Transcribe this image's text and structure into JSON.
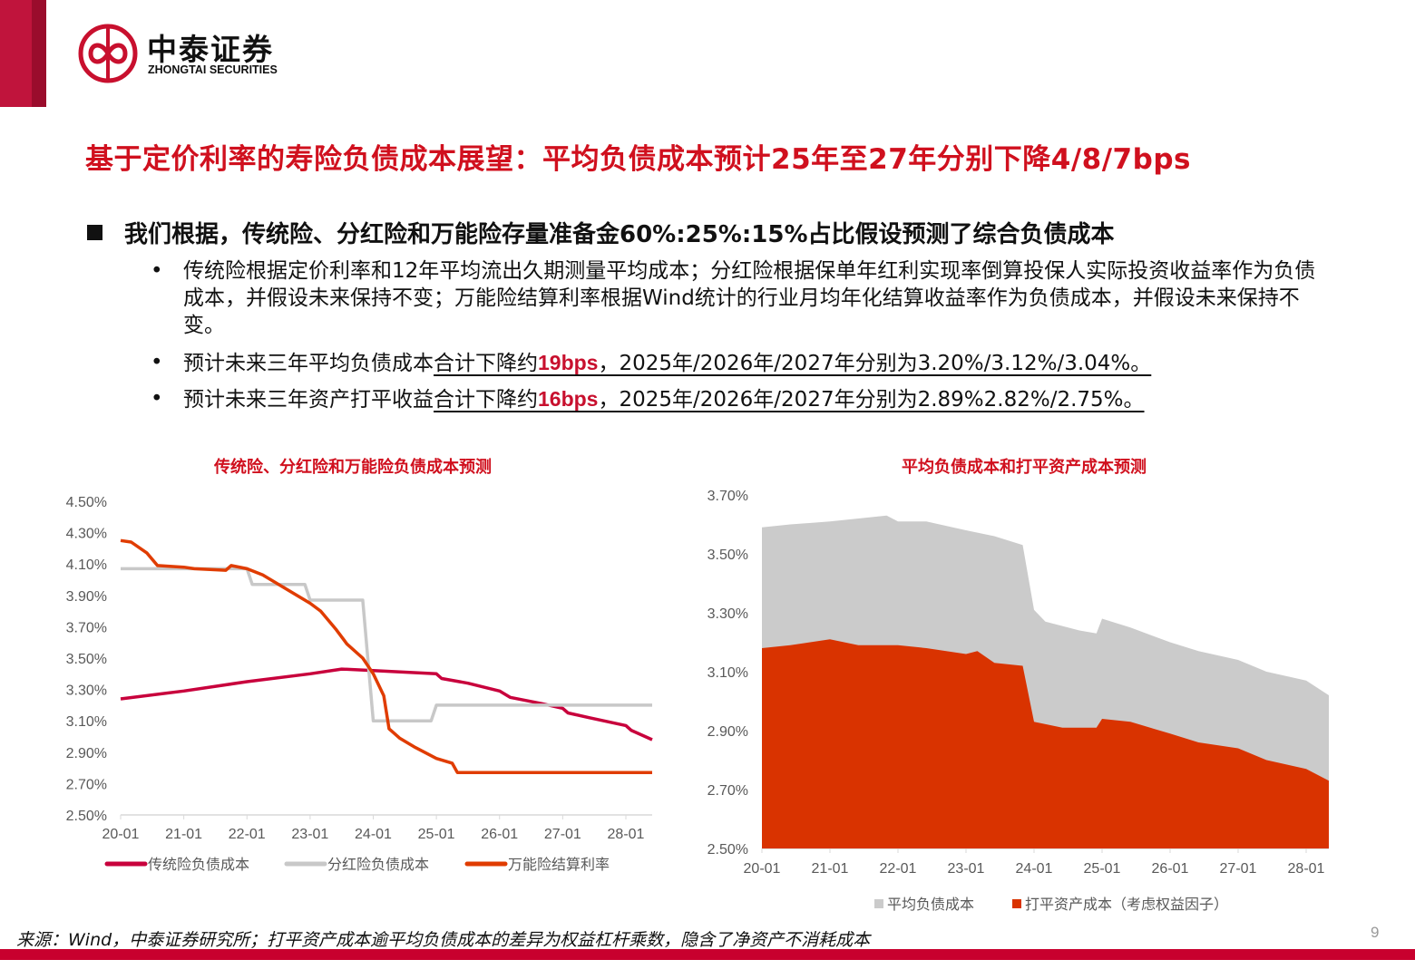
{
  "brand": {
    "name_cn": "中泰证券",
    "name_en": "ZHONGTAI SECURITIES",
    "color": "#C8102E"
  },
  "title": "基于定价利率的寿险负债成本展望：平均负债成本预计25年至27年分别下降4/8/7bps",
  "heading": "我们根据，传统险、分红险和万能险存量准备金60%:25%:15%占比假设预测了综合负债成本",
  "bullets": [
    {
      "text": "传统险根据定价利率和12年平均流出久期测量平均成本；分红险根据保单年红利实现率倒算投保人实际投资收益率作为负债成本，并假设未来保持不变；万能险结算利率根据Wind统计的行业月均年化结算收益率作为负债成本，并假设未来保持不变。"
    },
    {
      "pre": "预计未来三年平均负债成本",
      "ul": "合计下降约",
      "hl": "19bps",
      "post": "，2025年/2026年/2027年分别为3.20%/3.12%/3.04%。"
    },
    {
      "pre": "预计未来三年资产打平收益",
      "ul": "合计下降约",
      "hl": "16bps",
      "post": "，2025年/2026年/2027年分别为2.89%2.82%/2.75%。"
    }
  ],
  "bullet_symbol": "•",
  "chart_data": [
    {
      "type": "line",
      "title": "传统险、分红险和万能险负债成本预测",
      "ylim": [
        2.5,
        4.5
      ],
      "yticks": [
        "4.50%",
        "4.30%",
        "4.10%",
        "3.90%",
        "3.70%",
        "3.50%",
        "3.30%",
        "3.10%",
        "2.90%",
        "2.70%",
        "2.50%"
      ],
      "xticks": [
        "20-01",
        "21-01",
        "22-01",
        "23-01",
        "24-01",
        "25-01",
        "26-01",
        "27-01",
        "28-01"
      ],
      "xrange": [
        "20-01",
        "28-06"
      ],
      "legend_position": "bottom",
      "grid": false,
      "series": [
        {
          "name": "传统险负债成本",
          "color": "#C8003C",
          "points": [
            [
              "20-01",
              3.24
            ],
            [
              "21-01",
              3.29
            ],
            [
              "22-01",
              3.35
            ],
            [
              "23-01",
              3.4
            ],
            [
              "23-07",
              3.43
            ],
            [
              "24-01",
              3.42
            ],
            [
              "25-01",
              3.4
            ],
            [
              "25-02",
              3.37
            ],
            [
              "25-07",
              3.34
            ],
            [
              "26-01",
              3.29
            ],
            [
              "26-03",
              3.25
            ],
            [
              "26-09",
              3.21
            ],
            [
              "27-01",
              3.18
            ],
            [
              "27-02",
              3.15
            ],
            [
              "27-06",
              3.12
            ],
            [
              "28-01",
              3.07
            ],
            [
              "28-02",
              3.04
            ],
            [
              "28-06",
              2.98
            ]
          ]
        },
        {
          "name": "分红险负债成本",
          "color": "#C8C8C8",
          "points": [
            [
              "20-01",
              4.07
            ],
            [
              "22-01",
              4.07
            ],
            [
              "22-02",
              3.97
            ],
            [
              "22-12",
              3.97
            ],
            [
              "23-01",
              3.87
            ],
            [
              "23-11",
              3.87
            ],
            [
              "24-01",
              3.1
            ],
            [
              "24-12",
              3.1
            ],
            [
              "25-01",
              3.2
            ],
            [
              "28-06",
              3.2
            ]
          ]
        },
        {
          "name": "万能险结算利率",
          "color": "#E03C00",
          "points": [
            [
              "20-01",
              4.25
            ],
            [
              "20-03",
              4.24
            ],
            [
              "20-06",
              4.17
            ],
            [
              "20-08",
              4.09
            ],
            [
              "21-01",
              4.08
            ],
            [
              "21-03",
              4.07
            ],
            [
              "21-09",
              4.06
            ],
            [
              "21-10",
              4.09
            ],
            [
              "22-01",
              4.07
            ],
            [
              "22-04",
              4.03
            ],
            [
              "22-09",
              3.93
            ],
            [
              "23-01",
              3.85
            ],
            [
              "23-03",
              3.8
            ],
            [
              "23-06",
              3.68
            ],
            [
              "23-08",
              3.59
            ],
            [
              "23-11",
              3.5
            ],
            [
              "24-01",
              3.4
            ],
            [
              "24-03",
              3.26
            ],
            [
              "24-04",
              3.05
            ],
            [
              "24-06",
              2.99
            ],
            [
              "24-09",
              2.93
            ],
            [
              "25-01",
              2.86
            ],
            [
              "25-04",
              2.83
            ],
            [
              "25-05",
              2.77
            ],
            [
              "28-06",
              2.77
            ]
          ]
        }
      ]
    },
    {
      "type": "area",
      "title": "平均负债成本和打平资产成本预测",
      "ylim": [
        2.5,
        3.7
      ],
      "yticks": [
        "3.70%",
        "3.50%",
        "3.30%",
        "3.10%",
        "2.90%",
        "2.70%",
        "2.50%"
      ],
      "xticks": [
        "20-01",
        "21-01",
        "22-01",
        "23-01",
        "24-01",
        "25-01",
        "26-01",
        "27-01",
        "28-01"
      ],
      "xrange": [
        "20-01",
        "28-05"
      ],
      "legend_position": "bottom",
      "grid": false,
      "series": [
        {
          "name": "平均负债成本",
          "color": "#CBCBCB",
          "points": [
            [
              "20-01",
              3.59
            ],
            [
              "20-06",
              3.6
            ],
            [
              "21-01",
              3.61
            ],
            [
              "21-06",
              3.62
            ],
            [
              "21-11",
              3.63
            ],
            [
              "22-01",
              3.61
            ],
            [
              "22-06",
              3.61
            ],
            [
              "23-01",
              3.58
            ],
            [
              "23-06",
              3.56
            ],
            [
              "23-11",
              3.53
            ],
            [
              "24-01",
              3.31
            ],
            [
              "24-03",
              3.27
            ],
            [
              "24-09",
              3.24
            ],
            [
              "24-12",
              3.23
            ],
            [
              "25-01",
              3.28
            ],
            [
              "25-06",
              3.25
            ],
            [
              "26-01",
              3.2
            ],
            [
              "26-06",
              3.17
            ],
            [
              "27-01",
              3.14
            ],
            [
              "27-06",
              3.1
            ],
            [
              "28-01",
              3.07
            ],
            [
              "28-05",
              3.02
            ]
          ]
        },
        {
          "name": "打平资产成本（考虑权益因子）",
          "color": "#D93300",
          "points": [
            [
              "20-01",
              3.18
            ],
            [
              "20-06",
              3.19
            ],
            [
              "21-01",
              3.21
            ],
            [
              "21-06",
              3.19
            ],
            [
              "22-01",
              3.19
            ],
            [
              "22-06",
              3.18
            ],
            [
              "23-01",
              3.16
            ],
            [
              "23-03",
              3.17
            ],
            [
              "23-06",
              3.13
            ],
            [
              "23-11",
              3.12
            ],
            [
              "24-01",
              2.93
            ],
            [
              "24-06",
              2.91
            ],
            [
              "24-12",
              2.91
            ],
            [
              "25-01",
              2.94
            ],
            [
              "25-06",
              2.93
            ],
            [
              "26-01",
              2.89
            ],
            [
              "26-06",
              2.86
            ],
            [
              "27-01",
              2.84
            ],
            [
              "27-06",
              2.8
            ],
            [
              "28-01",
              2.77
            ],
            [
              "28-05",
              2.73
            ]
          ]
        }
      ]
    }
  ],
  "footer": "来源：Wind，中泰证券研究所；打平资产成本逾平均负债成本的差异为权益杠杆乘数，隐含了净资产不消耗成本",
  "page_number": "9"
}
